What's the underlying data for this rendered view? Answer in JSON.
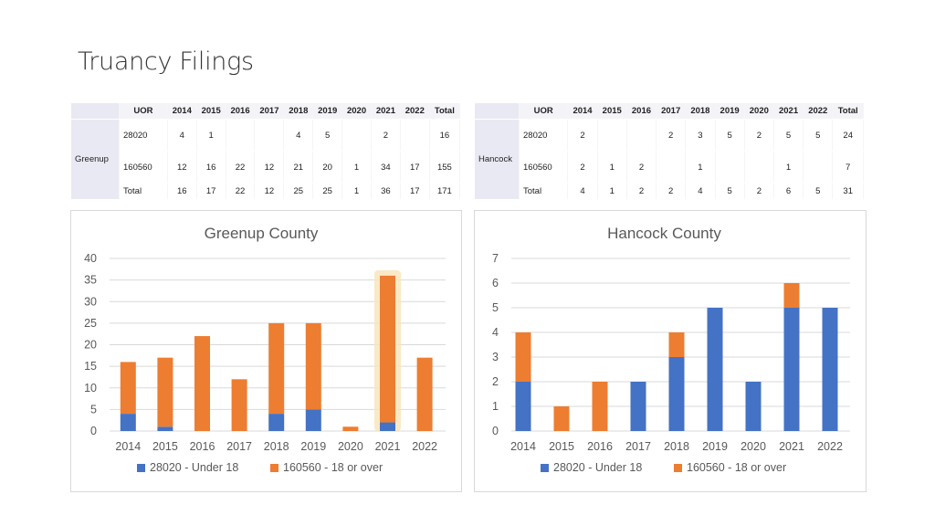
{
  "slide": {
    "title": "Truancy Filings"
  },
  "colors": {
    "under18": "#4472c4",
    "over18": "#ed7d31",
    "grid": "#d9d9d9",
    "highlight": "#f9e3b8"
  },
  "tables": [
    {
      "county": "Greenup",
      "headers": [
        "UOR",
        "2014",
        "2015",
        "2016",
        "2017",
        "2018",
        "2019",
        "2020",
        "2021",
        "2022",
        "Total"
      ],
      "rows": [
        [
          "28020",
          "4",
          "1",
          "",
          "",
          "4",
          "5",
          "",
          "2",
          "",
          "16"
        ],
        [
          "160560",
          "12",
          "16",
          "22",
          "12",
          "21",
          "20",
          "1",
          "34",
          "17",
          "155"
        ],
        [
          "Total",
          "16",
          "17",
          "22",
          "12",
          "25",
          "25",
          "1",
          "36",
          "17",
          "171"
        ]
      ]
    },
    {
      "county": "Hancock",
      "headers": [
        "UOR",
        "2014",
        "2015",
        "2016",
        "2017",
        "2018",
        "2019",
        "2020",
        "2021",
        "2022",
        "Total"
      ],
      "rows": [
        [
          "28020",
          "2",
          "",
          "",
          "2",
          "3",
          "5",
          "2",
          "5",
          "5",
          "24"
        ],
        [
          "160560",
          "2",
          "1",
          "2",
          "",
          "1",
          "",
          "",
          "1",
          "",
          "7"
        ],
        [
          "Total",
          "4",
          "1",
          "2",
          "2",
          "4",
          "5",
          "2",
          "6",
          "5",
          "31"
        ]
      ]
    }
  ],
  "chart_data": [
    {
      "type": "bar",
      "stacked": true,
      "title": "Greenup County",
      "categories": [
        "2014",
        "2015",
        "2016",
        "2017",
        "2018",
        "2019",
        "2020",
        "2021",
        "2022"
      ],
      "series": [
        {
          "name": "28020 - Under 18",
          "values": [
            4,
            1,
            0,
            0,
            4,
            5,
            0,
            2,
            0
          ]
        },
        {
          "name": "160560 - 18 or over",
          "values": [
            12,
            16,
            22,
            12,
            21,
            20,
            1,
            34,
            17
          ]
        }
      ],
      "ylim": [
        0,
        40
      ],
      "yticks": [
        0,
        5,
        10,
        15,
        20,
        25,
        30,
        35,
        40
      ],
      "grid": true,
      "legend": "bottom",
      "highlight_category": "2021"
    },
    {
      "type": "bar",
      "stacked": true,
      "title": "Hancock County",
      "categories": [
        "2014",
        "2015",
        "2016",
        "2017",
        "2018",
        "2019",
        "2020",
        "2021",
        "2022"
      ],
      "series": [
        {
          "name": "28020 - Under 18",
          "values": [
            2,
            0,
            0,
            2,
            3,
            5,
            2,
            5,
            5
          ]
        },
        {
          "name": "160560 - 18 or over",
          "values": [
            2,
            1,
            2,
            0,
            1,
            0,
            0,
            1,
            0
          ]
        }
      ],
      "ylim": [
        0,
        7
      ],
      "yticks": [
        0,
        1,
        2,
        3,
        4,
        5,
        6,
        7
      ],
      "grid": true,
      "legend": "bottom"
    }
  ]
}
